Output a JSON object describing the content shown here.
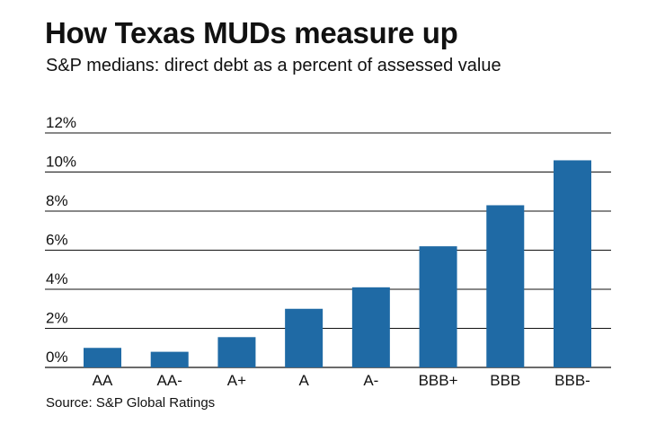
{
  "header": {
    "title": "How Texas MUDs measure up",
    "subtitle": "S&P medians: direct debt as a percent of assessed value"
  },
  "footer": {
    "source": "Source: S&P Global Ratings"
  },
  "colors": {
    "bar": "#1f6aa5",
    "grid": "#111111"
  },
  "chart_data": {
    "type": "bar",
    "title": "How Texas MUDs measure up",
    "subtitle": "S&P medians: direct debt as a percent of assessed value",
    "categories": [
      "AA",
      "AA-",
      "A+",
      "A",
      "A-",
      "BBB+",
      "BBB",
      "BBB-"
    ],
    "values": [
      1.0,
      0.8,
      1.55,
      3.0,
      4.1,
      6.2,
      8.3,
      10.6
    ],
    "unit": "%",
    "ylim": [
      0,
      12
    ],
    "yticks": [
      "0%",
      "2%",
      "4%",
      "6%",
      "8%",
      "10%",
      "12%"
    ],
    "ytick_values": [
      0,
      2,
      4,
      6,
      8,
      10,
      12
    ],
    "grid": true,
    "xlabel": "",
    "ylabel": ""
  }
}
